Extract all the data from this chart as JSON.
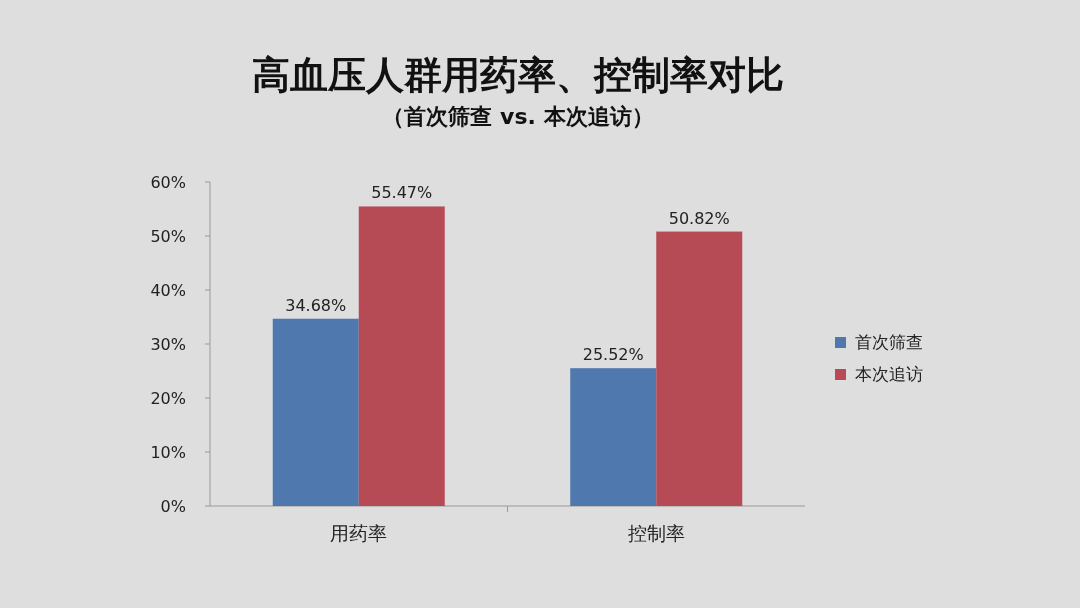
{
  "chart_data": {
    "type": "bar",
    "title": "高血压人群用药率、控制率对比",
    "subtitle": "（首次筛查 vs. 本次追访）",
    "categories": [
      "用药率",
      "控制率"
    ],
    "series": [
      {
        "name": "首次筛查",
        "color": "#4f78ae",
        "values": [
          34.68,
          25.52
        ],
        "value_labels": [
          "34.68%",
          "25.52%"
        ]
      },
      {
        "name": "本次追访",
        "color": "#b64a55",
        "values": [
          55.47,
          50.82
        ],
        "value_labels": [
          "55.47%",
          "50.82%"
        ]
      }
    ],
    "ylim": [
      0,
      60
    ],
    "yticks": [
      {
        "value": 0,
        "label": "0%"
      },
      {
        "value": 10,
        "label": "10%"
      },
      {
        "value": 20,
        "label": "20%"
      },
      {
        "value": 30,
        "label": "30%"
      },
      {
        "value": 40,
        "label": "40%"
      },
      {
        "value": 50,
        "label": "50%"
      },
      {
        "value": 60,
        "label": "60%"
      }
    ],
    "grid": false,
    "legend": "right"
  }
}
